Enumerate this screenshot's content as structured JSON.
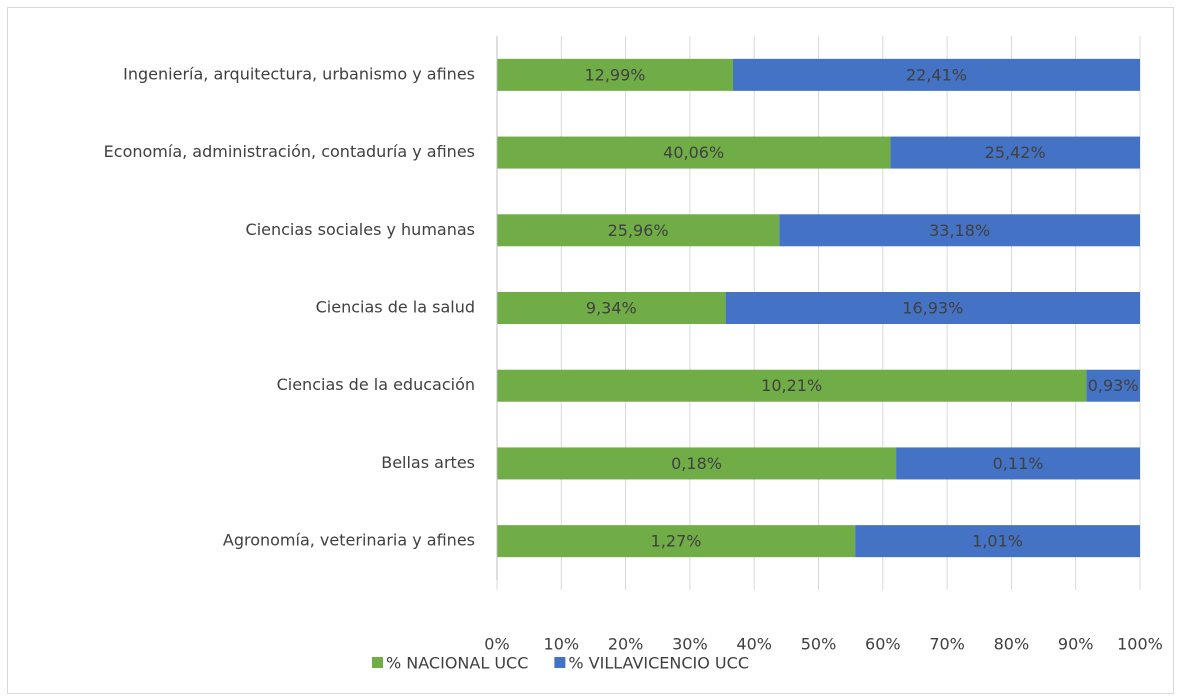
{
  "chart_data": {
    "type": "bar",
    "orientation": "horizontal",
    "stacking": "percent",
    "categories": [
      "Ingeniería, arquitectura, urbanismo y afines",
      "Economía, administración, contaduría y afines",
      "Ciencias sociales y humanas",
      "Ciencias de la salud",
      "Ciencias de la educación",
      "Bellas artes",
      "Agronomía, veterinaria y afines"
    ],
    "series": [
      {
        "name": "% NACIONAL UCC",
        "color": "#70ad47",
        "values": [
          12.99,
          40.06,
          25.96,
          9.34,
          10.21,
          0.18,
          1.27
        ],
        "value_labels": [
          "12,99%",
          "40,06%",
          "25,96%",
          "9,34%",
          "10,21%",
          "0,18%",
          "1,27%"
        ]
      },
      {
        "name": "% VILLAVICENCIO UCC",
        "color": "#4472c4",
        "values": [
          22.41,
          25.42,
          33.18,
          16.93,
          0.93,
          0.11,
          1.01
        ],
        "value_labels": [
          "22,41%",
          "25,42%",
          "33,18%",
          "16,93%",
          "0,93%",
          "0,11%",
          "1,01%"
        ]
      }
    ],
    "xlim": [
      0,
      100
    ],
    "xticks": [
      {
        "value": 0,
        "label": "0%"
      },
      {
        "value": 10,
        "label": "10%"
      },
      {
        "value": 20,
        "label": "20%"
      },
      {
        "value": 30,
        "label": "30%"
      },
      {
        "value": 40,
        "label": "40%"
      },
      {
        "value": 50,
        "label": "50%"
      },
      {
        "value": 60,
        "label": "60%"
      },
      {
        "value": 70,
        "label": "70%"
      },
      {
        "value": 80,
        "label": "80%"
      },
      {
        "value": 90,
        "label": "90%"
      },
      {
        "value": 100,
        "label": "100%"
      }
    ],
    "grid": true,
    "legend": "bottom"
  }
}
